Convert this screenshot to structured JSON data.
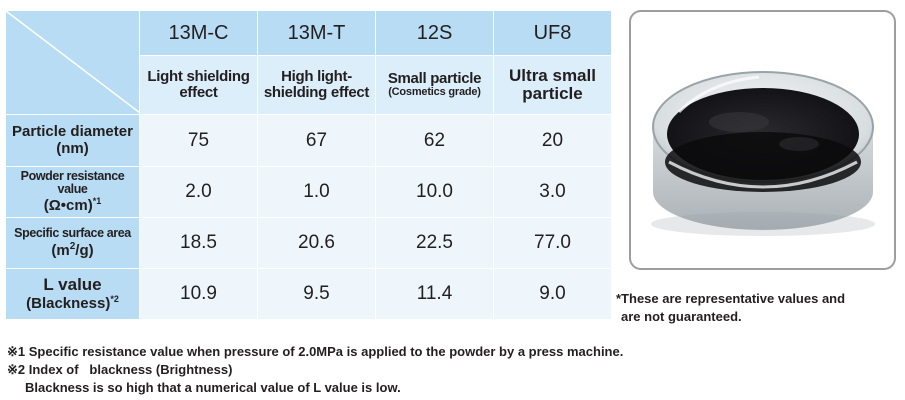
{
  "table": {
    "columns": [
      "13M-C",
      "13M-T",
      "12S",
      "UF8"
    ],
    "features": [
      {
        "line1": "Light shielding",
        "line2": "effect",
        "style": "normal"
      },
      {
        "line1": "High light-",
        "line2": "shielding effect",
        "style": "normal"
      },
      {
        "line1": "Small particle",
        "line2": "(Cosmetics grade)",
        "style": "small"
      },
      {
        "line1": "Ultra small",
        "line2": "particle",
        "style": "big"
      }
    ],
    "rows": [
      {
        "label1": "Particle diameter",
        "label2": "(nm)",
        "values": [
          "75",
          "67",
          "62",
          "20"
        ]
      },
      {
        "label1": "Powder resistance value",
        "label2": "(Ω•cm)",
        "note": "*1",
        "values": [
          "2.0",
          "1.0",
          "10.0",
          "3.0"
        ]
      },
      {
        "label1": "Specific surface area",
        "label2": "(m",
        "sup": "2",
        "label2b": "/g)",
        "values": [
          "18.5",
          "20.6",
          "22.5",
          "77.0"
        ]
      },
      {
        "label1": "L value",
        "label2": "(Blackness)",
        "note": "*2",
        "values": [
          "10.9",
          "9.5",
          "11.4",
          "9.0"
        ]
      }
    ]
  },
  "photo": {
    "subject": "black-powder-in-petri-dish"
  },
  "side_note": {
    "line1": "*These are representative values and",
    "line2": "are not guaranteed."
  },
  "footnotes": {
    "n1": "※1 Specific resistance value when pressure of 2.0MPa is applied to the powder by a press machine.",
    "n2": "※2 Index of   blackness (Brightness)",
    "n3": "Blackness is so high that a numerical value of L value is low."
  },
  "colors": {
    "header_blue": "#b7dcf3",
    "feature_blue": "#dbeefa",
    "value_bg": "#eef6fc",
    "border": "#3b9bd6"
  }
}
